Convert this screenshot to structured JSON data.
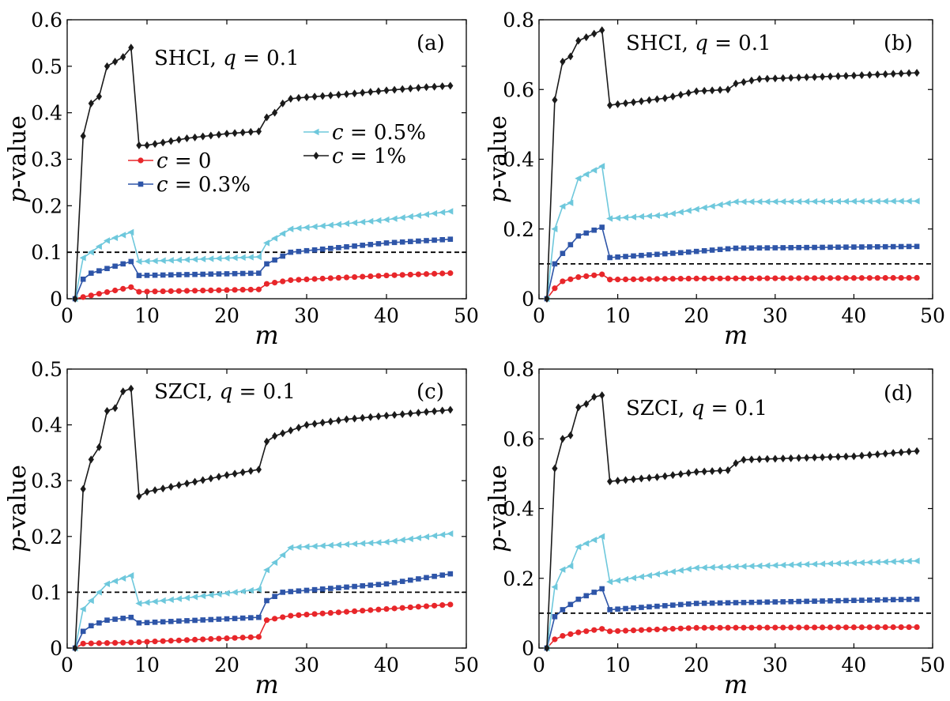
{
  "colors": {
    "c0": "#e8262a",
    "c03": "#2e55a8",
    "c05": "#6ec8dc",
    "c1": "#1a1a1a"
  },
  "chart_data": [
    {
      "id": "a",
      "type": "line",
      "panel_label": "(a)",
      "annotation": {
        "method": "SHCI",
        "sep": ", ",
        "q_symbol": "q",
        "q_value": " = 0.1"
      },
      "xlabel": "m",
      "ylabel_italic": "p",
      "ylabel_rest": "-value",
      "xlim": [
        0,
        50
      ],
      "ylim": [
        0,
        0.6
      ],
      "xticks": [
        0,
        10,
        20,
        30,
        40,
        50
      ],
      "yticks": [
        0,
        0.1,
        0.2,
        0.3,
        0.4,
        0.5,
        0.6
      ],
      "yticklabels": [
        "0",
        "0.1",
        "0.2",
        "0.3",
        "0.4",
        "0.5",
        "0.6"
      ],
      "reference_line": 0.1,
      "legend": [
        {
          "series": 0,
          "sym": "c",
          "rest": " = 0"
        },
        {
          "series": 1,
          "sym": "c",
          "rest": " = 0.3%"
        },
        {
          "series": 2,
          "sym": "c",
          "rest": " = 0.5%"
        },
        {
          "series": 3,
          "sym": "c",
          "rest": " = 1%"
        }
      ],
      "series": [
        {
          "name": "c = 0",
          "color_key": "c0",
          "marker": "circle",
          "x": [
            1,
            8,
            9,
            24,
            25,
            28,
            40,
            48
          ],
          "y": [
            0,
            0.025,
            0.015,
            0.02,
            0.032,
            0.04,
            0.05,
            0.055
          ]
        },
        {
          "name": "c = 0.3%",
          "color_key": "c03",
          "marker": "square",
          "x": [
            1,
            2,
            3,
            5,
            8,
            9,
            24,
            25,
            28,
            40,
            48
          ],
          "y": [
            0,
            0.042,
            0.055,
            0.065,
            0.08,
            0.05,
            0.055,
            0.075,
            0.1,
            0.12,
            0.128
          ]
        },
        {
          "name": "c = 0.5%",
          "color_key": "c05",
          "marker": "triangle-left",
          "x": [
            1,
            2,
            3,
            5,
            8,
            9,
            24,
            25,
            28,
            40,
            48
          ],
          "y": [
            0,
            0.088,
            0.1,
            0.125,
            0.143,
            0.08,
            0.09,
            0.12,
            0.15,
            0.17,
            0.188
          ]
        },
        {
          "name": "c = 1%",
          "color_key": "c1",
          "marker": "diamond",
          "x": [
            1,
            2,
            3,
            4,
            5,
            6,
            7,
            8,
            9,
            10,
            15,
            20,
            24,
            25,
            26,
            27,
            28,
            29,
            35,
            40,
            45,
            48
          ],
          "y": [
            0,
            0.35,
            0.42,
            0.435,
            0.5,
            0.51,
            0.52,
            0.54,
            0.33,
            0.33,
            0.345,
            0.355,
            0.36,
            0.39,
            0.4,
            0.42,
            0.43,
            0.432,
            0.44,
            0.448,
            0.455,
            0.458
          ]
        }
      ]
    },
    {
      "id": "b",
      "type": "line",
      "panel_label": "(b)",
      "annotation": {
        "method": "SHCI",
        "sep": ", ",
        "q_symbol": "q",
        "q_value": " = 0.1"
      },
      "xlabel": "m",
      "ylabel_italic": "p",
      "ylabel_rest": "-value",
      "xlim": [
        0,
        50
      ],
      "ylim": [
        0,
        0.8
      ],
      "xticks": [
        0,
        10,
        20,
        30,
        40,
        50
      ],
      "yticks": [
        0,
        0.2,
        0.4,
        0.6,
        0.8
      ],
      "yticklabels": [
        "0",
        "0.2",
        "0.4",
        "0.6",
        "0.8"
      ],
      "reference_line": 0.1,
      "series": [
        {
          "name": "c = 0",
          "color_key": "c0",
          "marker": "circle",
          "x": [
            1,
            2,
            3,
            5,
            8,
            9,
            20,
            48
          ],
          "y": [
            0,
            0.03,
            0.05,
            0.062,
            0.07,
            0.055,
            0.058,
            0.06
          ]
        },
        {
          "name": "c = 0.3%",
          "color_key": "c03",
          "marker": "square",
          "x": [
            1,
            2,
            3,
            5,
            8,
            9,
            18,
            25,
            48
          ],
          "y": [
            0,
            0.1,
            0.13,
            0.18,
            0.205,
            0.118,
            0.132,
            0.145,
            0.15
          ]
        },
        {
          "name": "c = 0.5%",
          "color_key": "c05",
          "marker": "triangle-left",
          "x": [
            1,
            2,
            3,
            4,
            5,
            8,
            9,
            16,
            25,
            48
          ],
          "y": [
            0,
            0.2,
            0.265,
            0.275,
            0.345,
            0.38,
            0.23,
            0.24,
            0.278,
            0.28
          ]
        },
        {
          "name": "c = 1%",
          "color_key": "c1",
          "marker": "diamond",
          "x": [
            1,
            2,
            3,
            4,
            5,
            6,
            7,
            8,
            9,
            16,
            20,
            24,
            25,
            28,
            40,
            48
          ],
          "y": [
            0,
            0.57,
            0.68,
            0.695,
            0.74,
            0.75,
            0.76,
            0.77,
            0.555,
            0.575,
            0.595,
            0.6,
            0.617,
            0.63,
            0.64,
            0.648
          ]
        }
      ]
    },
    {
      "id": "c",
      "type": "line",
      "panel_label": "(c)",
      "annotation": {
        "method": "SZCI",
        "sep": ", ",
        "q_symbol": "q",
        "q_value": " = 0.1"
      },
      "xlabel": "m",
      "ylabel_italic": "p",
      "ylabel_rest": "-value",
      "xlim": [
        0,
        50
      ],
      "ylim": [
        0,
        0.5
      ],
      "xticks": [
        0,
        10,
        20,
        30,
        40,
        50
      ],
      "yticks": [
        0,
        0.1,
        0.2,
        0.3,
        0.4,
        0.5
      ],
      "yticklabels": [
        "0",
        "0.1",
        "0.2",
        "0.3",
        "0.4",
        "0.5"
      ],
      "reference_line": 0.1,
      "series": [
        {
          "name": "c = 0",
          "color_key": "c0",
          "marker": "circle",
          "x": [
            1,
            2,
            8,
            24,
            25,
            28,
            40,
            48
          ],
          "y": [
            0,
            0.008,
            0.01,
            0.02,
            0.05,
            0.058,
            0.07,
            0.078
          ]
        },
        {
          "name": "c = 0.3%",
          "color_key": "c03",
          "marker": "square",
          "x": [
            1,
            2,
            3,
            5,
            8,
            9,
            24,
            25,
            27,
            40,
            48
          ],
          "y": [
            0,
            0.03,
            0.04,
            0.05,
            0.055,
            0.045,
            0.055,
            0.085,
            0.1,
            0.115,
            0.133
          ]
        },
        {
          "name": "c = 0.5%",
          "color_key": "c05",
          "marker": "triangle-left",
          "x": [
            1,
            2,
            3,
            4,
            5,
            8,
            9,
            24,
            25,
            28,
            40,
            48
          ],
          "y": [
            0,
            0.07,
            0.085,
            0.1,
            0.115,
            0.13,
            0.08,
            0.105,
            0.14,
            0.18,
            0.19,
            0.205
          ]
        },
        {
          "name": "c = 1%",
          "color_key": "c1",
          "marker": "diamond",
          "x": [
            1,
            2,
            3,
            4,
            5,
            6,
            7,
            8,
            9,
            10,
            15,
            20,
            24,
            25,
            26,
            28,
            30,
            35,
            48
          ],
          "y": [
            0,
            0.285,
            0.338,
            0.36,
            0.425,
            0.43,
            0.46,
            0.465,
            0.272,
            0.28,
            0.295,
            0.31,
            0.32,
            0.37,
            0.38,
            0.39,
            0.4,
            0.41,
            0.427
          ]
        }
      ]
    },
    {
      "id": "d",
      "type": "line",
      "panel_label": "(d)",
      "annotation": {
        "method": "SZCI",
        "sep": ", ",
        "q_symbol": "q",
        "q_value": " = 0.1"
      },
      "xlabel": "m",
      "ylabel_italic": "p",
      "ylabel_rest": "-value",
      "xlim": [
        0,
        50
      ],
      "ylim": [
        0,
        0.8
      ],
      "xticks": [
        0,
        10,
        20,
        30,
        40,
        50
      ],
      "yticks": [
        0,
        0.2,
        0.4,
        0.6,
        0.8
      ],
      "yticklabels": [
        "0",
        "0.2",
        "0.4",
        "0.6",
        "0.8"
      ],
      "reference_line": 0.1,
      "series": [
        {
          "name": "c = 0",
          "color_key": "c0",
          "marker": "circle",
          "x": [
            1,
            2,
            3,
            5,
            8,
            9,
            20,
            48
          ],
          "y": [
            0,
            0.025,
            0.035,
            0.045,
            0.055,
            0.048,
            0.058,
            0.06
          ]
        },
        {
          "name": "c = 0.3%",
          "color_key": "c03",
          "marker": "square",
          "x": [
            1,
            2,
            3,
            5,
            8,
            9,
            20,
            48
          ],
          "y": [
            0,
            0.09,
            0.11,
            0.14,
            0.17,
            0.11,
            0.128,
            0.14
          ]
        },
        {
          "name": "c = 0.5%",
          "color_key": "c05",
          "marker": "triangle-left",
          "x": [
            1,
            2,
            3,
            4,
            5,
            8,
            9,
            20,
            48
          ],
          "y": [
            0,
            0.175,
            0.225,
            0.235,
            0.29,
            0.32,
            0.19,
            0.23,
            0.25
          ]
        },
        {
          "name": "c = 1%",
          "color_key": "c1",
          "marker": "diamond",
          "x": [
            1,
            2,
            3,
            4,
            5,
            6,
            7,
            8,
            9,
            15,
            20,
            24,
            25,
            26,
            40,
            48
          ],
          "y": [
            0,
            0.515,
            0.6,
            0.61,
            0.69,
            0.7,
            0.72,
            0.725,
            0.478,
            0.49,
            0.505,
            0.51,
            0.53,
            0.54,
            0.55,
            0.565
          ]
        }
      ]
    }
  ]
}
